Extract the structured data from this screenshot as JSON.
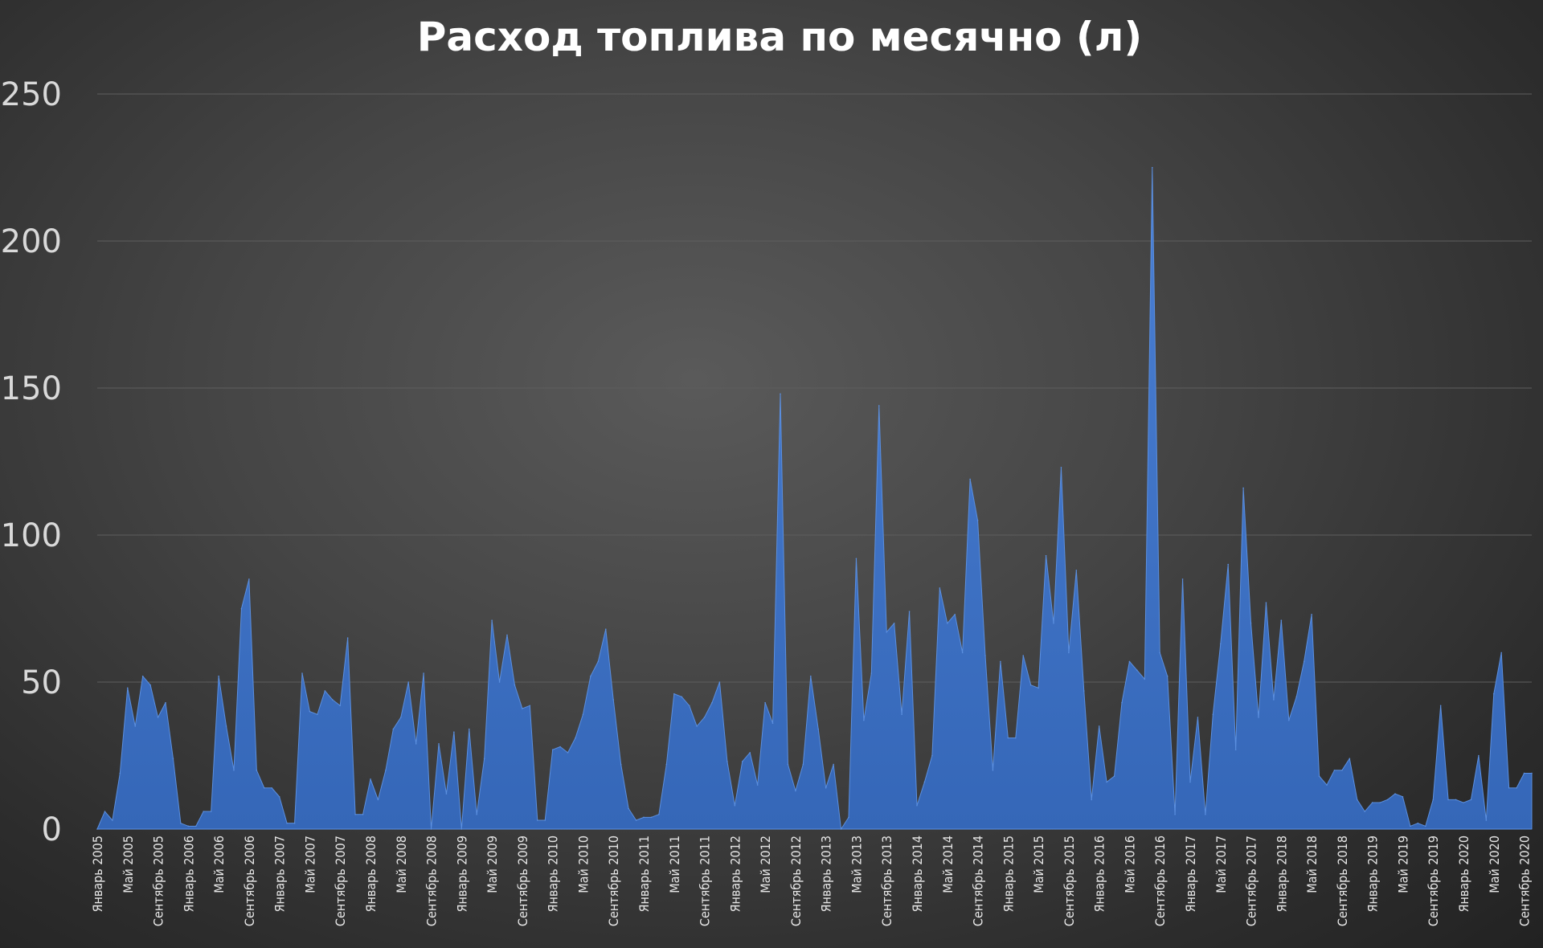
{
  "chart_data": {
    "type": "area",
    "title": "Расход топлива по месячно (л)",
    "xlabel": "",
    "ylabel": "",
    "ylim": [
      0,
      250
    ],
    "yticks": [
      "0",
      "50",
      "100",
      "150",
      "200",
      "250"
    ],
    "grid": true,
    "legend": "none",
    "colors": {
      "fill": "#3a6cbf",
      "fill_top": "#4a7fd3",
      "edge": "#5b8fdf"
    },
    "x_tick_labels": [
      "Январь 2005",
      "Май 2005",
      "Сентябрь 2005",
      "Январь 2006",
      "Май 2006",
      "Сентябрь 2006",
      "Январь 2007",
      "Май 2007",
      "Сентябрь 2007",
      "Январь 2008",
      "Май 2008",
      "Сентябрь 2008",
      "Январь 2009",
      "Май 2009",
      "Сентябрь 2009",
      "Январь 2010",
      "Май 2010",
      "Сентябрь 2010",
      "Январь 2011",
      "Май 2011",
      "Сентябрь 2011",
      "Январь 2012",
      "Май 2012",
      "Сентябрь 2012",
      "Январь 2013",
      "Май 2013",
      "Сентябрь 2013",
      "Январь 2014",
      "Май 2014",
      "Сентябрь 2014",
      "Январь 2015",
      "Май 2015",
      "Сентябрь 2015",
      "Январь 2016",
      "Май 2016",
      "Сентябрь 2016",
      "Январь 2017",
      "Май 2017",
      "Сентябрь 2017",
      "Январь 2018",
      "Май 2018",
      "Сентябрь 2018",
      "Январь 2019",
      "Май 2019",
      "Сентябрь 2019",
      "Январь 2020",
      "Май 2020",
      "Сентябрь 2020"
    ],
    "values": [
      0,
      6,
      3,
      19,
      48,
      35,
      52,
      49,
      38,
      43,
      24,
      2,
      1,
      1,
      6,
      6,
      52,
      35,
      20,
      75,
      85,
      20,
      14,
      14,
      11,
      2,
      2,
      53,
      40,
      39,
      47,
      44,
      42,
      65,
      5,
      5,
      17,
      10,
      20,
      34,
      38,
      50,
      29,
      53,
      0,
      29,
      12,
      33,
      0,
      34,
      5,
      24,
      71,
      50,
      66,
      49,
      41,
      42,
      3,
      3,
      27,
      28,
      26,
      31,
      39,
      52,
      57,
      68,
      44,
      22,
      7,
      3,
      4,
      4,
      5,
      22,
      46,
      45,
      42,
      35,
      38,
      43,
      50,
      23,
      8,
      23,
      26,
      15,
      43,
      36,
      148,
      22,
      13,
      22,
      52,
      34,
      14,
      22,
      0,
      4,
      92,
      37,
      53,
      144,
      67,
      70,
      39,
      74,
      8,
      16,
      25,
      82,
      70,
      73,
      60,
      119,
      105,
      59,
      20,
      57,
      31,
      31,
      59,
      49,
      48,
      93,
      70,
      123,
      60,
      88,
      47,
      10,
      35,
      16,
      18,
      43,
      57,
      54,
      51,
      225,
      60,
      52,
      5,
      85,
      16,
      38,
      5,
      39,
      63,
      90,
      27,
      116,
      70,
      38,
      77,
      44,
      71,
      37,
      45,
      57,
      73,
      18,
      15,
      20,
      20,
      24,
      10,
      6,
      9,
      9,
      10,
      12,
      11,
      1,
      2,
      1,
      10,
      42,
      10,
      10,
      9,
      10,
      25,
      3,
      46,
      60,
      14,
      14,
      19,
      19
    ]
  }
}
